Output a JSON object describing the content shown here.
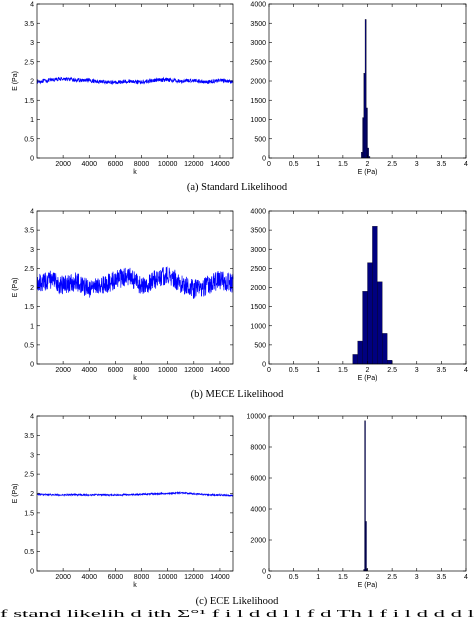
{
  "colors": {
    "series": "#0000ff",
    "bar_fill": "#00007f",
    "axes": "#000000"
  },
  "chart_data": [
    {
      "panel": "a-trace",
      "type": "line",
      "xlabel": "k",
      "ylabel": "E (Pa)",
      "xlim": [
        1,
        15000
      ],
      "ylim": [
        0,
        4
      ],
      "xticks": [
        2000,
        4000,
        6000,
        8000,
        10000,
        12000,
        14000
      ],
      "yticks": [
        0,
        0.5,
        1,
        1.5,
        2,
        2.5,
        3,
        3.5,
        4
      ],
      "series": [
        {
          "mean": 2.0,
          "noise_amplitude": 0.05,
          "x": [
            1,
            1000,
            2000,
            3000,
            4000,
            5000,
            6000,
            7000,
            8000,
            9000,
            10000,
            11000,
            12000,
            13000,
            14000,
            15000
          ],
          "y": [
            1.98,
            2.02,
            2.06,
            2.02,
            2.01,
            1.98,
            1.96,
            2.0,
            1.97,
            2.02,
            2.04,
            1.99,
            2.02,
            1.97,
            2.02,
            1.98
          ]
        }
      ]
    },
    {
      "panel": "a-hist",
      "type": "bar",
      "xlabel": "E (Pa)",
      "ylabel": "",
      "xlim": [
        0,
        4
      ],
      "ylim": [
        0,
        4000
      ],
      "xticks": [
        0,
        0.5,
        1,
        1.5,
        2,
        2.5,
        3,
        3.5,
        4
      ],
      "yticks": [
        0,
        500,
        1000,
        1500,
        2000,
        2500,
        3000,
        3500,
        4000
      ],
      "bin_width": 0.025,
      "bins": [
        1.875,
        1.9,
        1.925,
        1.95,
        1.975,
        2.0,
        2.025
      ],
      "values": [
        150,
        1050,
        2200,
        3600,
        1300,
        260,
        40
      ]
    },
    {
      "panel": "b-trace",
      "type": "line",
      "xlabel": "k",
      "ylabel": "E (Pa)",
      "xlim": [
        1,
        15000
      ],
      "ylim": [
        0,
        4
      ],
      "xticks": [
        2000,
        4000,
        6000,
        8000,
        10000,
        12000,
        14000
      ],
      "yticks": [
        0,
        0.5,
        1,
        1.5,
        2,
        2.5,
        3,
        3.5,
        4
      ],
      "series": [
        {
          "mean": 2.1,
          "noise_amplitude": 0.25,
          "x": [
            1,
            1000,
            2000,
            3000,
            4000,
            5000,
            6000,
            7000,
            8000,
            9000,
            10000,
            11000,
            12000,
            13000,
            14000,
            15000
          ],
          "y": [
            2.1,
            2.2,
            2.05,
            2.15,
            1.95,
            2.05,
            2.2,
            2.3,
            2.05,
            2.2,
            2.35,
            2.1,
            1.95,
            2.05,
            2.2,
            2.1
          ]
        }
      ]
    },
    {
      "panel": "b-hist",
      "type": "bar",
      "xlabel": "E (Pa)",
      "ylabel": "",
      "xlim": [
        0,
        4
      ],
      "ylim": [
        0,
        4000
      ],
      "xticks": [
        0,
        0.5,
        1,
        1.5,
        2,
        2.5,
        3,
        3.5,
        4
      ],
      "yticks": [
        0,
        500,
        1000,
        1500,
        2000,
        2500,
        3000,
        3500,
        4000
      ],
      "bin_width": 0.1,
      "bins": [
        1.7,
        1.8,
        1.9,
        2.0,
        2.1,
        2.2,
        2.3,
        2.4
      ],
      "values": [
        250,
        600,
        1900,
        2650,
        3600,
        2150,
        800,
        100
      ]
    },
    {
      "panel": "c-trace",
      "type": "line",
      "xlabel": "k",
      "ylabel": "E (Pa)",
      "xlim": [
        1,
        15000
      ],
      "ylim": [
        0,
        4
      ],
      "xticks": [
        2000,
        4000,
        6000,
        8000,
        10000,
        12000,
        14000
      ],
      "yticks": [
        0,
        0.5,
        1,
        1.5,
        2,
        2.5,
        3,
        3.5,
        4
      ],
      "series": [
        {
          "mean": 1.97,
          "noise_amplitude": 0.02,
          "x": [
            1,
            1000,
            2000,
            3000,
            4000,
            5000,
            6000,
            7000,
            8000,
            9000,
            10000,
            11000,
            12000,
            13000,
            14000,
            15000
          ],
          "y": [
            1.98,
            1.97,
            1.96,
            1.97,
            1.96,
            1.97,
            1.96,
            1.97,
            1.98,
            1.99,
            2.0,
            2.02,
            1.99,
            1.97,
            1.96,
            1.95
          ]
        }
      ]
    },
    {
      "panel": "c-hist",
      "type": "bar",
      "xlabel": "E (Pa)",
      "ylabel": "",
      "xlim": [
        0,
        4
      ],
      "ylim": [
        0,
        10000
      ],
      "xticks": [
        0,
        0.5,
        1,
        1.5,
        2,
        2.5,
        3,
        3.5,
        4
      ],
      "yticks": [
        0,
        2000,
        4000,
        6000,
        8000,
        10000
      ],
      "bin_width": 0.02,
      "bins": [
        1.92,
        1.94,
        1.96,
        1.98
      ],
      "values": [
        100,
        9700,
        3200,
        150
      ]
    }
  ],
  "captions": {
    "a": "(a)  Standard Likelihood",
    "b": "(b)  MECE Likelihood",
    "c": "(c)  ECE Likelihood"
  },
  "footer_text": "f stand      likelih   d     ith  Σ°¹  f   i   l   d     d   l    l   f  d      Th     l    f   i   l   d   d        d  l"
}
